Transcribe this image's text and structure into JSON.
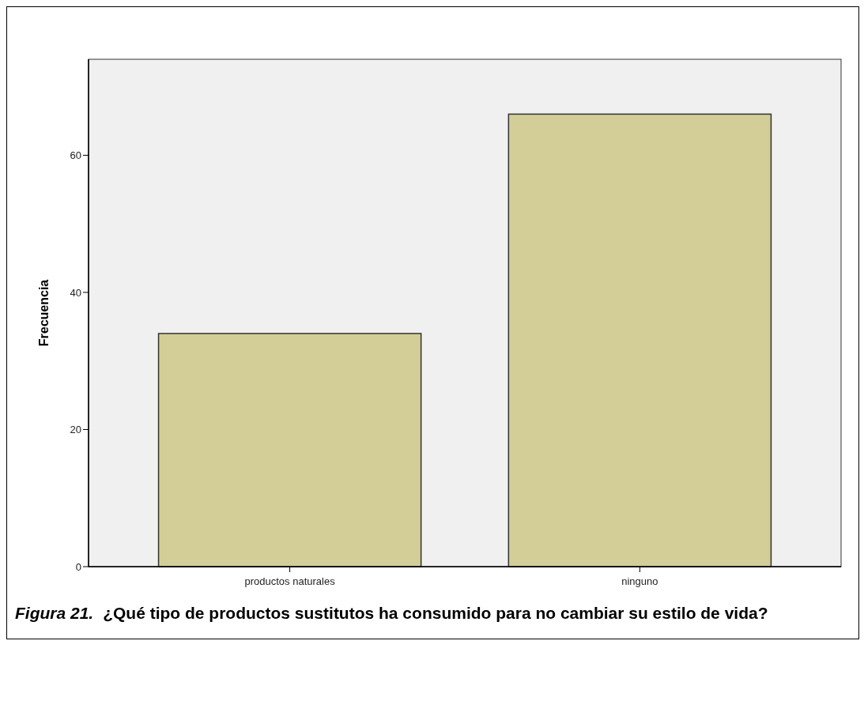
{
  "chart_data": {
    "type": "bar",
    "categories": [
      "productos naturales",
      "ninguno"
    ],
    "values": [
      34,
      66
    ],
    "color": "#d3ce97",
    "ylabel": "Frecuencia",
    "ylim": [
      0,
      74
    ],
    "yticks": [
      0,
      20,
      40,
      60
    ],
    "grid": false,
    "annotations": [
      "Figura 21.",
      "¿Qué tipo de productos sustitutos ha consumido para no cambiar su estilo de vida?"
    ]
  }
}
